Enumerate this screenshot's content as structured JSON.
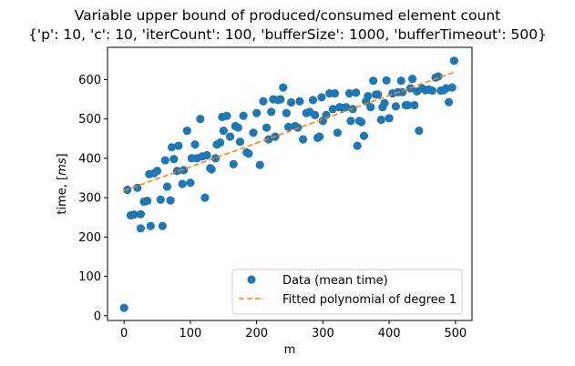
{
  "chart_data": {
    "type": "scatter",
    "title": "Variable upper bound of produced/consumed element count",
    "subtitle": "{'p': 10, 'c': 10, 'iterCount': 100, 'bufferSize': 1000, 'bufferTimeout': 500}",
    "xlabel": "m",
    "ylabel_prefix": "time, [",
    "ylabel_unit": "ms",
    "ylabel_suffix": "]",
    "xlim": [
      -25,
      525
    ],
    "ylim": [
      -12,
      682
    ],
    "xticks": [
      0,
      100,
      200,
      300,
      400,
      500
    ],
    "yticks": [
      0,
      100,
      200,
      300,
      400,
      500,
      600
    ],
    "legend_position": "lower-right",
    "grid": false,
    "colors": {
      "data": "#1f77b4",
      "fit": "#ff7f0e"
    },
    "series": [
      {
        "name": "Data (mean time)",
        "style": "markers",
        "points": [
          [
            0,
            20
          ],
          [
            5,
            320
          ],
          [
            10,
            255
          ],
          [
            15,
            257
          ],
          [
            20,
            325
          ],
          [
            25,
            258
          ],
          [
            25,
            222
          ],
          [
            30,
            290
          ],
          [
            35,
            292
          ],
          [
            38,
            360
          ],
          [
            40,
            228
          ],
          [
            45,
            362
          ],
          [
            50,
            368
          ],
          [
            55,
            295
          ],
          [
            58,
            228
          ],
          [
            62,
            395
          ],
          [
            65,
            328
          ],
          [
            70,
            293
          ],
          [
            72,
            428
          ],
          [
            75,
            398
          ],
          [
            80,
            368
          ],
          [
            82,
            432
          ],
          [
            88,
            335
          ],
          [
            90,
            370
          ],
          [
            95,
            470
          ],
          [
            100,
            338
          ],
          [
            102,
            400
          ],
          [
            107,
            435
          ],
          [
            110,
            400
          ],
          [
            115,
            500
          ],
          [
            118,
            405
          ],
          [
            122,
            300
          ],
          [
            125,
            408
          ],
          [
            130,
            375
          ],
          [
            132,
            372
          ],
          [
            138,
            400
          ],
          [
            140,
            435
          ],
          [
            145,
            440
          ],
          [
            148,
            505
          ],
          [
            150,
            470
          ],
          [
            155,
            508
          ],
          [
            160,
            455
          ],
          [
            165,
            385
          ],
          [
            168,
            482
          ],
          [
            172,
            478
          ],
          [
            175,
            442
          ],
          [
            180,
            508
          ],
          [
            185,
            415
          ],
          [
            188,
            412
          ],
          [
            195,
            465
          ],
          [
            200,
            515
          ],
          [
            205,
            383
          ],
          [
            210,
            545
          ],
          [
            215,
            478
          ],
          [
            218,
            448
          ],
          [
            222,
            518
          ],
          [
            225,
            550
          ],
          [
            228,
            455
          ],
          [
            232,
            548
          ],
          [
            236,
            550
          ],
          [
            240,
            580
          ],
          [
            245,
            515
          ],
          [
            248,
            480
          ],
          [
            252,
            542
          ],
          [
            258,
            482
          ],
          [
            262,
            478
          ],
          [
            265,
            545
          ],
          [
            270,
            448
          ],
          [
            275,
            515
          ],
          [
            280,
            518
          ],
          [
            285,
            548
          ],
          [
            288,
            510
          ],
          [
            292,
            452
          ],
          [
            295,
            455
          ],
          [
            298,
            555
          ],
          [
            300,
            495
          ],
          [
            305,
            510
          ],
          [
            310,
            565
          ],
          [
            315,
            525
          ],
          [
            318,
            565
          ],
          [
            322,
            465
          ],
          [
            325,
            530
          ],
          [
            330,
            528
          ],
          [
            335,
            530
          ],
          [
            340,
            565
          ],
          [
            342,
            495
          ],
          [
            345,
            525
          ],
          [
            350,
            567
          ],
          [
            352,
            432
          ],
          [
            355,
            495
          ],
          [
            358,
            492
          ],
          [
            362,
            457
          ],
          [
            365,
            545
          ],
          [
            368,
            558
          ],
          [
            372,
            530
          ],
          [
            376,
            597
          ],
          [
            380,
            562
          ],
          [
            383,
            562
          ],
          [
            388,
            498
          ],
          [
            390,
            530
          ],
          [
            393,
            540
          ],
          [
            396,
            598
          ],
          [
            400,
            502
          ],
          [
            405,
            565
          ],
          [
            410,
            532
          ],
          [
            413,
            568
          ],
          [
            418,
            597
          ],
          [
            420,
            568
          ],
          [
            425,
            535
          ],
          [
            428,
            535
          ],
          [
            432,
            578
          ],
          [
            435,
            602
          ],
          [
            438,
            535
          ],
          [
            442,
            570
          ],
          [
            445,
            470
          ],
          [
            450,
            578
          ],
          [
            455,
            573
          ],
          [
            460,
            575
          ],
          [
            465,
            572
          ],
          [
            470,
            605
          ],
          [
            474,
            608
          ],
          [
            478,
            572
          ],
          [
            482,
            573
          ],
          [
            486,
            578
          ],
          [
            490,
            543
          ],
          [
            495,
            580
          ],
          [
            498,
            648
          ]
        ]
      },
      {
        "name": "Fitted polynomial of degree 1",
        "style": "dashed-line",
        "points": [
          [
            0,
            318
          ],
          [
            500,
            620
          ]
        ]
      }
    ]
  }
}
